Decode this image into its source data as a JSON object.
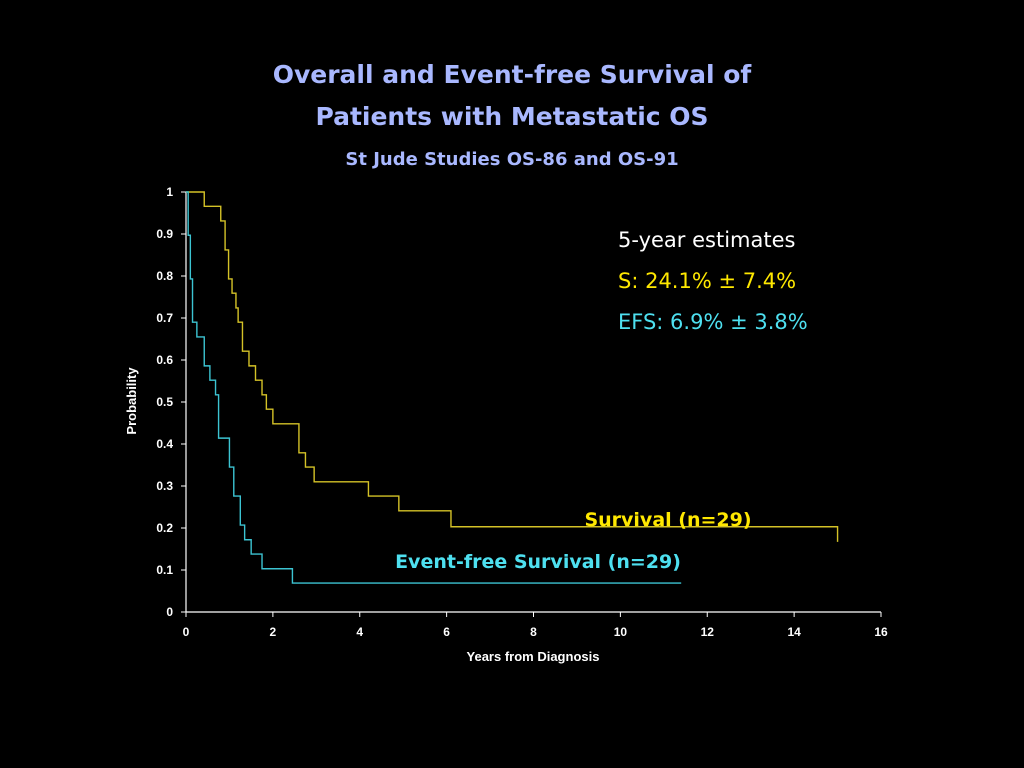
{
  "slide": {
    "title_line1": "Overall and Event-free Survival of",
    "title_line2": "Patients with Metastatic OS",
    "subtitle": "St Jude Studies OS-86 and OS-91",
    "estimates": {
      "heading": "5-year estimates",
      "survival": "S: 24.1% ± 7.4%",
      "efs": "EFS: 6.9% ± 3.8%"
    }
  },
  "colors": {
    "title": "#a9b8ff",
    "survival": "#d4c227",
    "efs": "#3cc4d2",
    "axis": "#ffffff",
    "estimates_heading": "#ffffff",
    "survival_text": "#ffe800",
    "efs_text": "#4ee0f0"
  },
  "chart_data": {
    "type": "line",
    "step": true,
    "xlabel": "Years from Diagnosis",
    "ylabel": "Probability",
    "xlim": [
      0,
      16
    ],
    "ylim": [
      0,
      1
    ],
    "xticks": [
      0,
      2,
      4,
      6,
      8,
      10,
      12,
      14,
      16
    ],
    "yticks": [
      0,
      0.1,
      0.2,
      0.3,
      0.4,
      0.5,
      0.6,
      0.7,
      0.8,
      0.9,
      1
    ],
    "ytick_labels": [
      "0",
      "0.1",
      "0.2",
      "0.3",
      "0.4",
      "0.5",
      "0.6",
      "0.7",
      "0.8",
      "0.9",
      "1"
    ],
    "grid": false,
    "series": [
      {
        "name": "Survival (n=29)",
        "x": [
          0,
          0.42,
          0.8,
          0.9,
          0.98,
          1.06,
          1.15,
          1.2,
          1.3,
          1.45,
          1.6,
          1.75,
          1.85,
          2.0,
          2.6,
          2.75,
          2.95,
          4.2,
          4.9,
          6.1,
          15.0
        ],
        "y": [
          1.0,
          0.966,
          0.931,
          0.862,
          0.793,
          0.759,
          0.724,
          0.69,
          0.621,
          0.586,
          0.552,
          0.517,
          0.483,
          0.448,
          0.379,
          0.345,
          0.31,
          0.276,
          0.241,
          0.203,
          0.167
        ]
      },
      {
        "name": "Event-free Survival (n=29)",
        "x": [
          0,
          0.05,
          0.1,
          0.15,
          0.25,
          0.42,
          0.55,
          0.68,
          0.75,
          1.0,
          1.1,
          1.25,
          1.35,
          1.5,
          1.75,
          2.0,
          2.45,
          11.4
        ],
        "y": [
          1.0,
          0.897,
          0.793,
          0.69,
          0.655,
          0.586,
          0.552,
          0.517,
          0.414,
          0.345,
          0.276,
          0.207,
          0.172,
          0.138,
          0.103,
          0.103,
          0.069,
          0.069
        ]
      }
    ],
    "series_labels_on_chart": [
      "Survival (n=29)",
      "Event-free Survival (n=29)"
    ]
  }
}
